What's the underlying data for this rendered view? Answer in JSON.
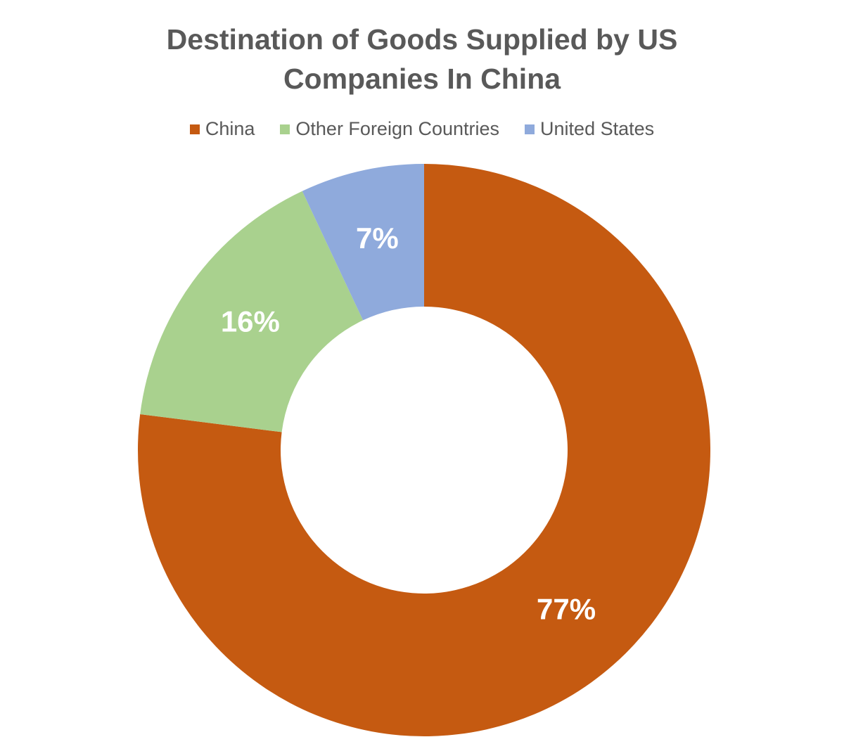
{
  "chart_data": {
    "type": "donut",
    "title": "Destination of Goods Supplied by US Companies In China",
    "categories": [
      "China",
      "Other Foreign Countries",
      "United States"
    ],
    "values": [
      77,
      16,
      7
    ],
    "value_labels": [
      "77%",
      "16%",
      "7%"
    ],
    "colors": [
      "#c55a11",
      "#a9d18e",
      "#8faadc"
    ],
    "legend": "top"
  }
}
